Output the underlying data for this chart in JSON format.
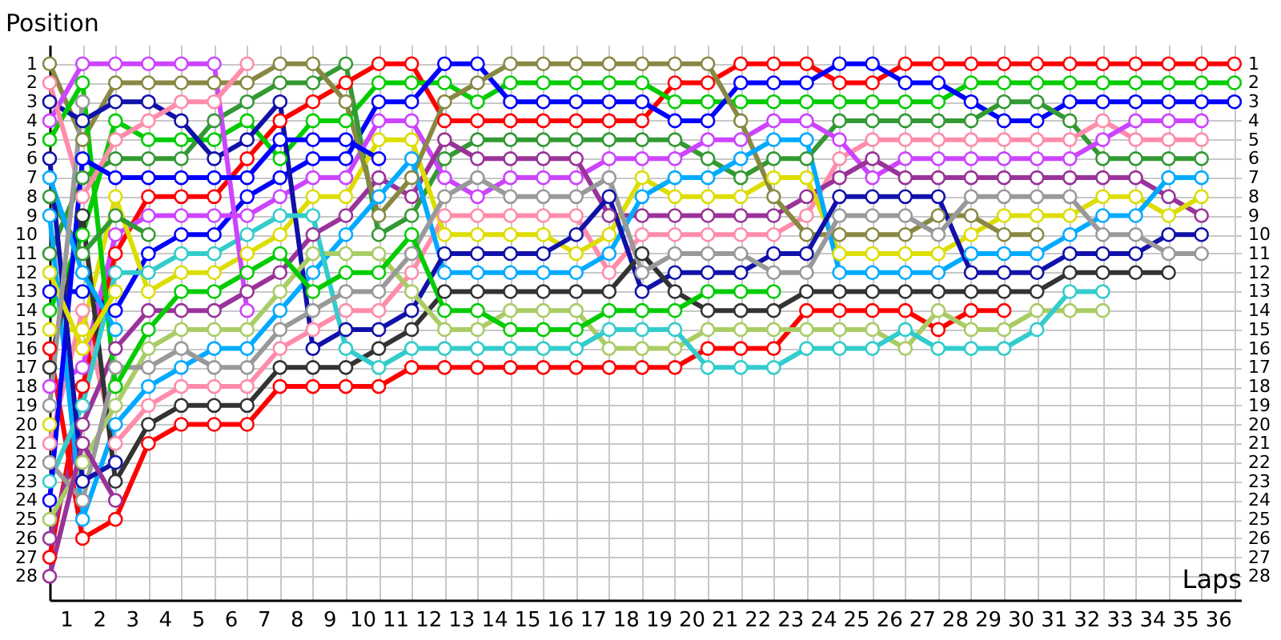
{
  "chart_data": {
    "type": "line",
    "xlabel": "Laps",
    "ylabel": "Position",
    "x": [
      0,
      1,
      2,
      3,
      4,
      5,
      6,
      7,
      8,
      9,
      10,
      11,
      12,
      13,
      14,
      15,
      16,
      17,
      18,
      19,
      20,
      21,
      22,
      23,
      24,
      25,
      26,
      27,
      28,
      29,
      30,
      31,
      32,
      33,
      34,
      35,
      36
    ],
    "xlim": [
      0,
      36.2
    ],
    "xticks": [
      {
        "value": 0,
        "label": null
      },
      {
        "value": 0.5,
        "label": "1"
      },
      {
        "value": 1,
        "label": null
      },
      {
        "value": 1.5,
        "label": "2"
      },
      {
        "value": 2,
        "label": null
      },
      {
        "value": 2.5,
        "label": "3"
      },
      {
        "value": 3,
        "label": null
      },
      {
        "value": 3.5,
        "label": "4"
      },
      {
        "value": 4,
        "label": null
      },
      {
        "value": 4.5,
        "label": "5"
      },
      {
        "value": 5,
        "label": null
      },
      {
        "value": 5.5,
        "label": "6"
      },
      {
        "value": 6,
        "label": null
      },
      {
        "value": 6.5,
        "label": "7"
      },
      {
        "value": 7,
        "label": null
      },
      {
        "value": 7.5,
        "label": "8"
      },
      {
        "value": 8,
        "label": null
      },
      {
        "value": 8.5,
        "label": "9"
      },
      {
        "value": 9,
        "label": null
      },
      {
        "value": 9.5,
        "label": "10"
      },
      {
        "value": 10,
        "label": null
      },
      {
        "value": 10.5,
        "label": "11"
      },
      {
        "value": 11,
        "label": null
      },
      {
        "value": 11.5,
        "label": "12"
      },
      {
        "value": 12,
        "label": null
      },
      {
        "value": 12.5,
        "label": "13"
      },
      {
        "value": 13,
        "label": null
      },
      {
        "value": 13.5,
        "label": "14"
      },
      {
        "value": 14,
        "label": null
      },
      {
        "value": 14.5,
        "label": "15"
      },
      {
        "value": 15,
        "label": null
      },
      {
        "value": 15.5,
        "label": "16"
      },
      {
        "value": 16,
        "label": null
      },
      {
        "value": 16.5,
        "label": "17"
      },
      {
        "value": 17,
        "label": null
      },
      {
        "value": 17.5,
        "label": "18"
      },
      {
        "value": 18,
        "label": null
      },
      {
        "value": 18.5,
        "label": "19"
      },
      {
        "value": 19,
        "label": null
      },
      {
        "value": 19.5,
        "label": "20"
      },
      {
        "value": 20,
        "label": null
      },
      {
        "value": 20.5,
        "label": "21"
      },
      {
        "value": 21,
        "label": null
      },
      {
        "value": 21.5,
        "label": "22"
      },
      {
        "value": 22,
        "label": null
      },
      {
        "value": 22.5,
        "label": "23"
      },
      {
        "value": 23,
        "label": null
      },
      {
        "value": 23.5,
        "label": "24"
      },
      {
        "value": 24,
        "label": null
      },
      {
        "value": 24.5,
        "label": "25"
      },
      {
        "value": 25,
        "label": null
      },
      {
        "value": 25.5,
        "label": "26"
      },
      {
        "value": 26,
        "label": null
      },
      {
        "value": 26.5,
        "label": "27"
      },
      {
        "value": 27,
        "label": null
      },
      {
        "value": 27.5,
        "label": "28"
      },
      {
        "value": 28,
        "label": null
      },
      {
        "value": 28.5,
        "label": "29"
      },
      {
        "value": 29,
        "label": null
      },
      {
        "value": 29.5,
        "label": "30"
      },
      {
        "value": 30,
        "label": null
      },
      {
        "value": 30.5,
        "label": "31"
      },
      {
        "value": 31,
        "label": null
      },
      {
        "value": 31.5,
        "label": "32"
      },
      {
        "value": 32,
        "label": null
      },
      {
        "value": 32.5,
        "label": "33"
      },
      {
        "value": 33,
        "label": null
      },
      {
        "value": 33.5,
        "label": "34"
      },
      {
        "value": 34,
        "label": null
      },
      {
        "value": 34.5,
        "label": "35"
      },
      {
        "value": 35,
        "label": null
      },
      {
        "value": 35.5,
        "label": "36"
      },
      {
        "value": 36,
        "label": null
      }
    ],
    "ylim": [
      29.25,
      0
    ],
    "yticks": [
      1,
      2,
      3,
      4,
      5,
      6,
      7,
      8,
      9,
      10,
      11,
      12,
      13,
      14,
      15,
      16,
      17,
      18,
      19,
      20,
      21,
      22,
      23,
      24,
      25,
      26,
      27,
      28
    ],
    "y2lim": [
      29.25,
      0
    ],
    "y2ticks": [
      1,
      2,
      3,
      4,
      5,
      6,
      7,
      8,
      9,
      10,
      11,
      12,
      13,
      14,
      15,
      16,
      17,
      18,
      19,
      20,
      21,
      22,
      23,
      24,
      25,
      26,
      27,
      28
    ],
    "grid": true,
    "marker": "circle",
    "line_style": "solid",
    "series": [
      {
        "color": "#ff0000",
        "values": [
          27,
          18,
          11,
          8,
          8,
          8,
          6,
          4,
          3,
          2,
          1,
          1,
          4,
          4,
          4,
          4,
          4,
          4,
          4,
          2,
          2,
          1,
          1,
          1,
          2,
          2,
          1,
          1,
          1,
          1,
          1,
          1,
          1,
          1,
          1,
          1,
          1
        ]
      },
      {
        "color": "#00cc00",
        "values": [
          14,
          10,
          4,
          5,
          5,
          5,
          4,
          6,
          4,
          4,
          2,
          2,
          2,
          3,
          2,
          2,
          2,
          2,
          2,
          3,
          3,
          3,
          3,
          3,
          3,
          3,
          3,
          3,
          2,
          2,
          2,
          2,
          2,
          2,
          2,
          2,
          2
        ]
      },
      {
        "color": "#0000ff",
        "values": [
          13,
          13,
          14,
          11,
          10,
          10,
          8,
          7,
          6,
          6,
          3,
          3,
          1,
          1,
          3,
          3,
          3,
          3,
          3,
          4,
          4,
          2,
          2,
          2,
          1,
          1,
          2,
          2,
          3,
          4,
          4,
          3,
          3,
          3,
          3,
          3,
          3
        ]
      },
      {
        "color": "#339933",
        "values": [
          11,
          7,
          6,
          6,
          6,
          4,
          3,
          2,
          2,
          1,
          10,
          9,
          6,
          5,
          5,
          5,
          5,
          5,
          5,
          5,
          6,
          7,
          6,
          6,
          4,
          4,
          4,
          4,
          4,
          3,
          3,
          4,
          6,
          6,
          6,
          6,
          null
        ]
      },
      {
        "color": "#ff8caa",
        "values": [
          21,
          14,
          21,
          19,
          18,
          18,
          18,
          16,
          15,
          14,
          14,
          12,
          9,
          9,
          9,
          9,
          9,
          12,
          10,
          10,
          10,
          10,
          10,
          9,
          6,
          5,
          5,
          5,
          5,
          5,
          5,
          5,
          4,
          5,
          5,
          5,
          null
        ]
      },
      {
        "color": "#cc44ff",
        "values": [
          18,
          17,
          10,
          9,
          9,
          9,
          9,
          8,
          7,
          7,
          4,
          4,
          7,
          8,
          7,
          7,
          7,
          6,
          6,
          6,
          5,
          5,
          4,
          4,
          5,
          7,
          6,
          6,
          6,
          6,
          6,
          6,
          5,
          4,
          4,
          4,
          null
        ]
      },
      {
        "color": "#993399",
        "values": [
          26,
          20,
          16,
          14,
          14,
          14,
          13,
          12,
          10,
          9,
          7,
          8,
          5,
          6,
          6,
          6,
          6,
          9,
          9,
          9,
          9,
          9,
          9,
          8,
          7,
          6,
          7,
          7,
          7,
          7,
          7,
          7,
          7,
          7,
          8,
          9,
          null
        ]
      },
      {
        "color": "#dddd00",
        "values": [
          15,
          15,
          8,
          13,
          12,
          12,
          11,
          10,
          8,
          8,
          5,
          5,
          10,
          10,
          10,
          10,
          11,
          10,
          7,
          8,
          8,
          8,
          7,
          7,
          11,
          11,
          11,
          11,
          10,
          9,
          9,
          9,
          8,
          8,
          9,
          8,
          null
        ]
      },
      {
        "color": "#888844",
        "values": [
          1,
          5,
          2,
          2,
          2,
          2,
          2,
          1,
          1,
          3,
          9,
          7,
          3,
          2,
          1,
          1,
          1,
          1,
          1,
          1,
          1,
          4,
          8,
          10,
          10,
          10,
          10,
          9,
          9,
          10,
          10,
          null,
          null,
          null,
          null,
          null,
          null
        ]
      },
      {
        "color": "#00aaff",
        "values": [
          9,
          25,
          20,
          18,
          17,
          16,
          16,
          14,
          12,
          10,
          8,
          6,
          12,
          12,
          12,
          12,
          12,
          11,
          8,
          7,
          7,
          6,
          5,
          5,
          12,
          12,
          12,
          12,
          11,
          11,
          11,
          10,
          9,
          9,
          7,
          7,
          null
        ]
      },
      {
        "color": "#1111aa",
        "values": [
          3,
          4,
          3,
          3,
          4,
          6,
          5,
          3,
          16,
          15,
          15,
          14,
          11,
          11,
          11,
          11,
          10,
          8,
          13,
          12,
          12,
          12,
          11,
          11,
          8,
          8,
          8,
          8,
          12,
          12,
          12,
          11,
          11,
          11,
          10,
          10,
          null
        ]
      },
      {
        "color": "#333333",
        "values": [
          17,
          9,
          23,
          20,
          19,
          19,
          19,
          17,
          17,
          17,
          16,
          15,
          13,
          13,
          13,
          13,
          13,
          13,
          11,
          13,
          14,
          14,
          14,
          13,
          13,
          13,
          13,
          13,
          13,
          13,
          13,
          12,
          12,
          12,
          12,
          null,
          null
        ]
      },
      {
        "color": "#ff0000",
        "values": [
          16,
          26,
          25,
          21,
          20,
          20,
          20,
          18,
          18,
          18,
          18,
          17,
          17,
          17,
          17,
          17,
          17,
          17,
          17,
          17,
          16,
          16,
          16,
          14,
          14,
          14,
          14,
          15,
          14,
          14,
          null,
          null,
          null,
          null,
          null,
          null,
          null
        ]
      },
      {
        "color": "#aacc66",
        "values": [
          25,
          22,
          19,
          16,
          15,
          15,
          15,
          13,
          11,
          11,
          11,
          13,
          15,
          15,
          14,
          14,
          14,
          16,
          16,
          16,
          15,
          15,
          15,
          15,
          15,
          15,
          16,
          14,
          15,
          15,
          14,
          14,
          14,
          null,
          null,
          null,
          null
        ]
      },
      {
        "color": "#33cccc",
        "values": [
          23,
          19,
          12,
          12,
          11,
          11,
          10,
          9,
          9,
          16,
          17,
          16,
          16,
          16,
          16,
          16,
          16,
          15,
          15,
          15,
          17,
          17,
          17,
          16,
          16,
          16,
          15,
          16,
          16,
          16,
          15,
          13,
          13,
          null,
          null,
          null,
          null
        ]
      },
      {
        "color": "#999999",
        "values": [
          22,
          24,
          17,
          17,
          16,
          17,
          17,
          15,
          14,
          13,
          13,
          11,
          8,
          7,
          8,
          8,
          8,
          7,
          12,
          11,
          11,
          11,
          12,
          12,
          9,
          9,
          9,
          10,
          8,
          8,
          8,
          8,
          10,
          10,
          11,
          11,
          null
        ]
      },
      {
        "color": "#00cc00",
        "values": [
          5,
          2,
          18,
          15,
          13,
          13,
          12,
          11,
          13,
          12,
          12,
          10,
          14,
          14,
          15,
          15,
          15,
          14,
          14,
          14,
          13,
          13,
          13,
          null,
          null,
          null,
          null,
          null,
          null,
          null,
          null,
          null,
          null,
          null,
          null,
          null,
          null
        ]
      },
      {
        "color": "#cc44ff",
        "values": [
          4,
          1,
          1,
          1,
          1,
          1,
          14,
          null,
          null,
          null,
          null,
          null,
          null,
          null,
          null,
          null,
          null,
          null,
          null,
          null,
          null,
          null,
          null,
          null,
          null,
          null,
          null,
          null,
          null,
          null,
          null,
          null,
          null,
          null,
          null,
          null,
          null
        ]
      },
      {
        "color": "#ff8caa",
        "values": [
          2,
          8,
          5,
          4,
          3,
          3,
          1,
          null,
          null,
          null,
          null,
          null,
          null,
          null,
          null,
          null,
          null,
          null,
          null,
          null,
          null,
          null,
          null,
          null,
          null,
          null,
          null,
          null,
          null,
          null,
          null,
          null,
          null,
          null,
          null,
          null,
          null
        ]
      },
      {
        "color": "#339933",
        "values": [
          8,
          11,
          9,
          10,
          null,
          null,
          null,
          null,
          null,
          null,
          null,
          null,
          null,
          null,
          null,
          null,
          null,
          null,
          null,
          null,
          null,
          null,
          null,
          null,
          null,
          null,
          null,
          null,
          null,
          null,
          null,
          null,
          null,
          null,
          null,
          null,
          null
        ]
      },
      {
        "color": "#0000ff",
        "values": [
          24,
          6,
          7,
          7,
          7,
          7,
          7,
          5,
          5,
          5,
          6,
          null,
          null,
          null,
          null,
          null,
          null,
          null,
          null,
          null,
          null,
          null,
          null,
          null,
          null,
          null,
          null,
          null,
          null,
          null,
          null,
          null,
          null,
          null,
          null,
          null,
          null
        ]
      },
      {
        "color": "#1111aa",
        "values": [
          6,
          23,
          22,
          null,
          null,
          null,
          null,
          null,
          null,
          null,
          null,
          null,
          null,
          null,
          null,
          null,
          null,
          null,
          null,
          null,
          null,
          null,
          null,
          null,
          null,
          null,
          null,
          null,
          null,
          null,
          null,
          null,
          null,
          null,
          null,
          null,
          null
        ]
      },
      {
        "color": "#00aaff",
        "values": [
          7,
          12,
          15,
          null,
          null,
          null,
          null,
          null,
          null,
          null,
          null,
          null,
          null,
          null,
          null,
          null,
          null,
          null,
          null,
          null,
          null,
          null,
          null,
          null,
          null,
          null,
          null,
          null,
          null,
          null,
          null,
          null,
          null,
          null,
          null,
          null,
          null
        ]
      },
      {
        "color": "#dddd00",
        "values": [
          12,
          16,
          13,
          null,
          null,
          null,
          null,
          null,
          null,
          null,
          null,
          null,
          null,
          null,
          null,
          null,
          null,
          null,
          null,
          null,
          null,
          null,
          null,
          null,
          null,
          null,
          null,
          null,
          null,
          null,
          null,
          null,
          null,
          null,
          null,
          null,
          null
        ]
      },
      {
        "color": "#993399",
        "values": [
          28,
          21,
          24,
          null,
          null,
          null,
          null,
          null,
          null,
          null,
          null,
          null,
          null,
          null,
          null,
          null,
          null,
          null,
          null,
          null,
          null,
          null,
          null,
          null,
          null,
          null,
          null,
          null,
          null,
          null,
          null,
          null,
          null,
          null,
          null,
          null,
          null
        ]
      },
      {
        "color": "#999999",
        "values": [
          19,
          3,
          null,
          null,
          null,
          null,
          null,
          null,
          null,
          null,
          null,
          null,
          null,
          null,
          null,
          null,
          null,
          null,
          null,
          null,
          null,
          null,
          null,
          null,
          null,
          null,
          null,
          null,
          null,
          null,
          null,
          null,
          null,
          null,
          null,
          null,
          null
        ]
      },
      {
        "color": "#dddd00",
        "values": [
          20,
          null,
          null,
          null,
          null,
          null,
          null,
          null,
          null,
          null,
          null,
          null,
          null,
          null,
          null,
          null,
          null,
          null,
          null,
          null,
          null,
          null,
          null,
          null,
          null,
          null,
          null,
          null,
          null,
          null,
          null,
          null,
          null,
          null,
          null,
          null,
          null
        ]
      }
    ]
  }
}
